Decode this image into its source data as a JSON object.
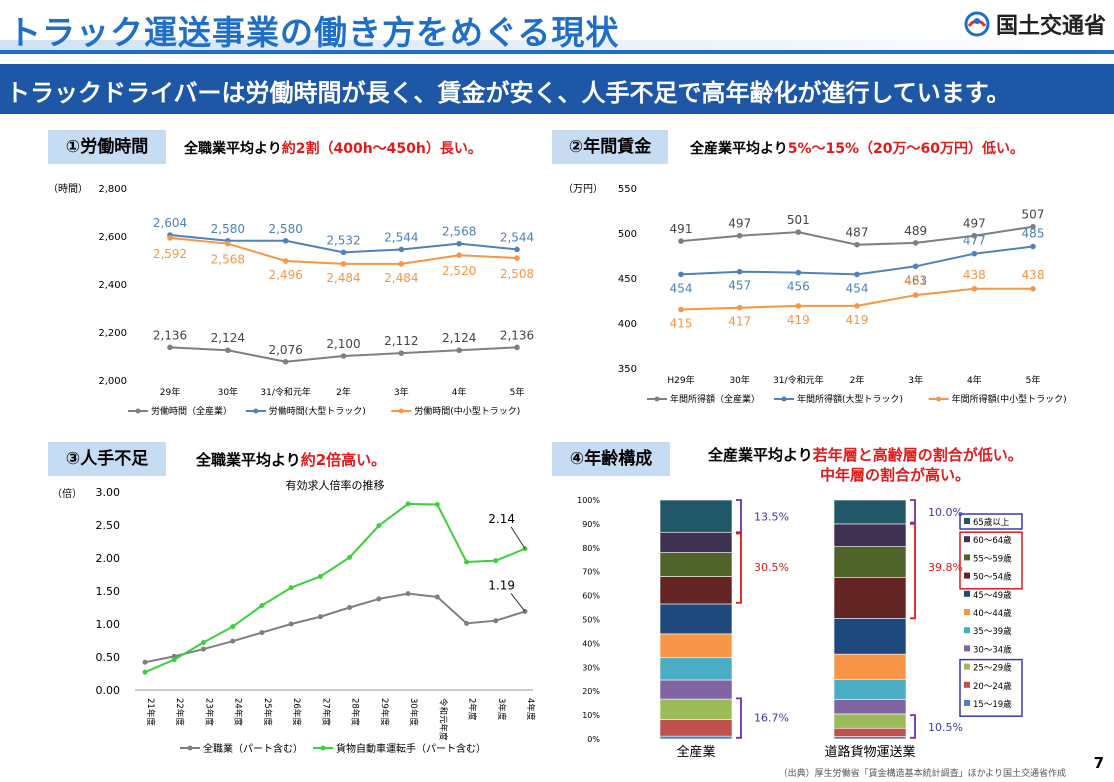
{
  "header": {
    "title": "トラック運送事業の働き方をめぐる現状",
    "logo": "国土交通省",
    "banner": "トラックドライバーは労働時間が長く、賃金が安く、人手不足で高年齢化が進行しています。"
  },
  "sections": [
    {
      "label": "①労働時間",
      "note_prefix": "全職業平均より",
      "note_highlight": "約2割（400h～450h）長い。"
    },
    {
      "label": "②年間賃金",
      "note_prefix": "全産業平均より",
      "note_highlight": "5%～15%（20万～60万円）低い。"
    },
    {
      "label": "③人手不足",
      "note_prefix": "全職業平均より",
      "note_highlight": "約2倍高い。"
    },
    {
      "label": "④年齢構成",
      "note_prefix": "全産業平均より",
      "note_highlight": "若年層と高齢層の割合が低い。",
      "note_line2": "中年層の割合が高い。"
    }
  ],
  "chart_data": [
    {
      "type": "line",
      "unit": "（時間）",
      "categories": [
        "29年",
        "30年",
        "31/令和元年",
        "2年",
        "3年",
        "4年",
        "5年"
      ],
      "ylim": [
        2000,
        2800
      ],
      "yticks": [
        "2,000",
        "2,200",
        "2,400",
        "2,600",
        "2,800"
      ],
      "series": [
        {
          "name": "労働時間（全産業）",
          "color": "#7f7f7f",
          "values": [
            2136,
            2124,
            2076,
            2100,
            2112,
            2124,
            2136
          ],
          "labels": [
            "2,136",
            "2,124",
            "2,076",
            "2,100",
            "2,112",
            "2,124",
            "2,136"
          ]
        },
        {
          "name": "労働時間(大型トラック)",
          "color": "#4f81bd",
          "values": [
            2604,
            2580,
            2580,
            2532,
            2544,
            2568,
            2544
          ],
          "labels": [
            "2,604",
            "2,580",
            "2,580",
            "2,532",
            "2,544",
            "2,568",
            "2,544"
          ]
        },
        {
          "name": "労働時間(中小型トラック)",
          "color": "#f79646",
          "values": [
            2592,
            2568,
            2496,
            2484,
            2484,
            2520,
            2508
          ],
          "labels": [
            "2,592",
            "2,568",
            "2,496",
            "2,484",
            "2,484",
            "2,520",
            "2,508"
          ]
        }
      ]
    },
    {
      "type": "line",
      "unit": "（万円）",
      "categories": [
        "H29年",
        "30年",
        "31/令和元年",
        "2年",
        "3年",
        "4年",
        "5年"
      ],
      "ylim": [
        350,
        550
      ],
      "yticks": [
        "350",
        "400",
        "450",
        "500",
        "550"
      ],
      "series": [
        {
          "name": "年間所得額（全産業）",
          "color": "#7f7f7f",
          "values": [
            491,
            497,
            501,
            487,
            489,
            497,
            507
          ],
          "labels": [
            "491",
            "497",
            "501",
            "487",
            "489",
            "497",
            "507"
          ]
        },
        {
          "name": "年間所得額(大型トラック)",
          "color": "#4f81bd",
          "values": [
            454,
            457,
            456,
            454,
            463,
            477,
            485
          ],
          "labels": [
            "454",
            "457",
            "456",
            "454",
            "463",
            "477",
            "485"
          ]
        },
        {
          "name": "年間所得額(中小型トラック)",
          "color": "#f79646",
          "values": [
            415,
            417,
            419,
            419,
            431,
            438,
            438
          ],
          "labels": [
            "415",
            "417",
            "419",
            "419",
            "431",
            "438",
            "438"
          ]
        }
      ]
    },
    {
      "type": "line",
      "title": "有効求人倍率の推移",
      "unit": "（倍）",
      "categories": [
        "21年度",
        "22年度",
        "23年度",
        "24年度",
        "25年度",
        "26年度",
        "27年度",
        "28年度",
        "29年度",
        "30年度",
        "令和元年度",
        "2年度",
        "3年度",
        "4年度"
      ],
      "ylim": [
        0,
        3
      ],
      "yticks": [
        "0.00",
        "0.50",
        "1.00",
        "1.50",
        "2.00",
        "2.50",
        "3.00"
      ],
      "series": [
        {
          "name": "全職業（パート含む）",
          "color": "#7f7f7f",
          "values": [
            0.42,
            0.51,
            0.62,
            0.74,
            0.87,
            1.0,
            1.11,
            1.25,
            1.38,
            1.46,
            1.41,
            1.01,
            1.05,
            1.19
          ]
        },
        {
          "name": "貨物自動車運転手（パート含む）",
          "color": "#3cd13c",
          "values": [
            0.27,
            0.46,
            0.72,
            0.96,
            1.28,
            1.55,
            1.72,
            2.01,
            2.49,
            2.82,
            2.81,
            1.94,
            1.96,
            2.14
          ]
        }
      ],
      "end_labels": [
        "1.19",
        "2.14"
      ]
    },
    {
      "type": "bar",
      "categories": [
        "全産業",
        "道路貨物運送業"
      ],
      "yticks": [
        "0%",
        "10%",
        "20%",
        "30%",
        "40%",
        "50%",
        "60%",
        "70%",
        "80%",
        "90%",
        "100%"
      ],
      "series": [
        {
          "name": "15～19歳",
          "color": "#4f81bd",
          "values": [
            1.2,
            1.0
          ]
        },
        {
          "name": "20～24歳",
          "color": "#c0504d",
          "values": [
            7.0,
            3.5
          ]
        },
        {
          "name": "25～29歳",
          "color": "#9bbb59",
          "values": [
            8.5,
            6.0
          ]
        },
        {
          "name": "30～34歳",
          "color": "#8064a2",
          "values": [
            8.0,
            6.0
          ]
        },
        {
          "name": "35～39歳",
          "color": "#4bacc6",
          "values": [
            9.3,
            8.5
          ]
        },
        {
          "name": "40～44歳",
          "color": "#f79646",
          "values": [
            10.0,
            10.5
          ]
        },
        {
          "name": "45～49歳",
          "color": "#1f497d",
          "values": [
            12.5,
            15.0
          ]
        },
        {
          "name": "50～54歳",
          "color": "#632423",
          "values": [
            11.5,
            17.0
          ]
        },
        {
          "name": "55～59歳",
          "color": "#4f6228",
          "values": [
            10.0,
            13.0
          ]
        },
        {
          "name": "60～64歳",
          "color": "#3f3151",
          "values": [
            8.5,
            9.5
          ]
        },
        {
          "name": "65歳以上",
          "color": "#215868",
          "values": [
            13.5,
            10.0
          ]
        }
      ],
      "annotations": {
        "a_top": "13.5%",
        "a_mid": "30.5%",
        "a_bot": "16.7%",
        "b_top": "10.0%",
        "b_mid": "39.8%",
        "b_bot": "10.5%"
      }
    }
  ],
  "page_number": "7",
  "source": "（出典）厚生労働省「賃金構造基本統計調査」ほかより国土交通省作成"
}
